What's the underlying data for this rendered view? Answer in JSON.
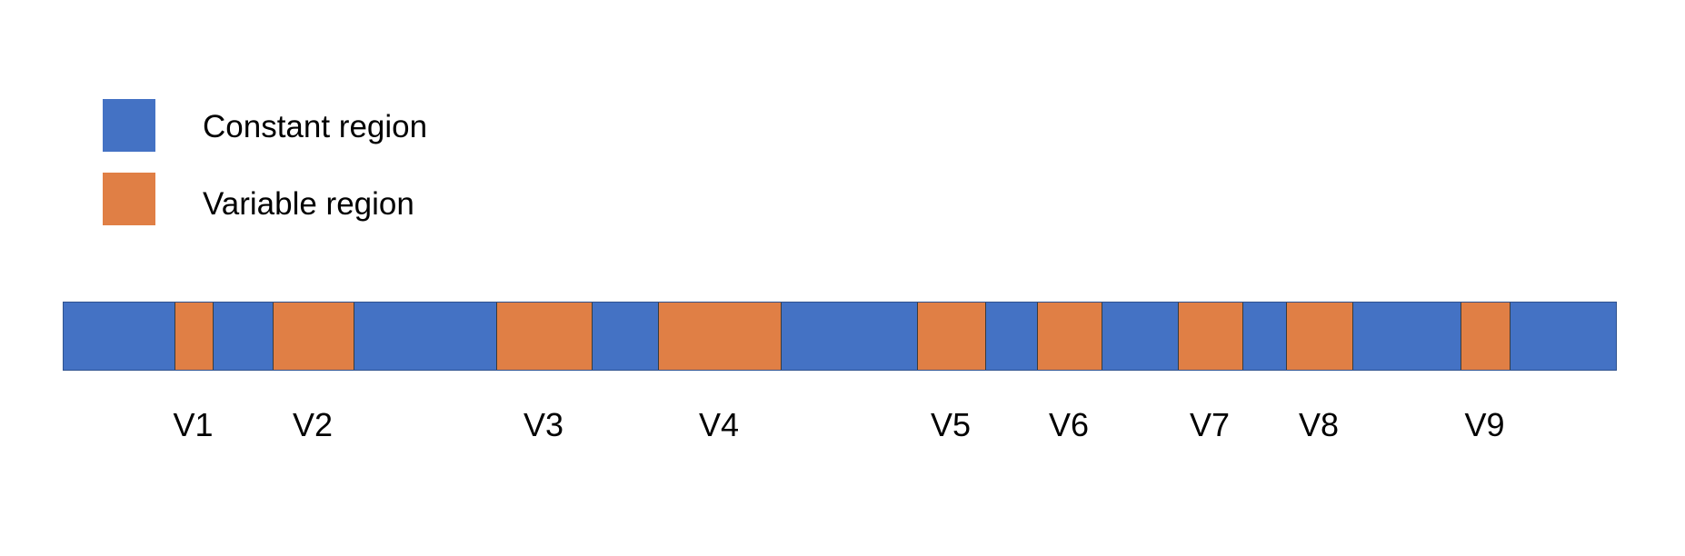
{
  "legend": {
    "constant": {
      "label": "Constant region",
      "color": "#4472C4"
    },
    "variable": {
      "label": "Variable region",
      "color": "#E07F45"
    }
  },
  "gene_strip": {
    "segments": [
      {
        "type": "constant",
        "start": 0,
        "end": 122
      },
      {
        "type": "variable",
        "start": 122,
        "end": 165,
        "label": "V1"
      },
      {
        "type": "constant",
        "start": 165,
        "end": 230
      },
      {
        "type": "variable",
        "start": 230,
        "end": 320,
        "label": "V2"
      },
      {
        "type": "constant",
        "start": 320,
        "end": 476
      },
      {
        "type": "variable",
        "start": 476,
        "end": 582,
        "label": "V3"
      },
      {
        "type": "constant",
        "start": 582,
        "end": 654
      },
      {
        "type": "variable",
        "start": 654,
        "end": 790,
        "label": "V4"
      },
      {
        "type": "constant",
        "start": 790,
        "end": 939
      },
      {
        "type": "variable",
        "start": 939,
        "end": 1015,
        "label": "V5"
      },
      {
        "type": "constant",
        "start": 1015,
        "end": 1071
      },
      {
        "type": "variable",
        "start": 1071,
        "end": 1143,
        "label": "V6"
      },
      {
        "type": "constant",
        "start": 1143,
        "end": 1226
      },
      {
        "type": "variable",
        "start": 1226,
        "end": 1298,
        "label": "V7"
      },
      {
        "type": "constant",
        "start": 1298,
        "end": 1345
      },
      {
        "type": "variable",
        "start": 1345,
        "end": 1419,
        "label": "V8"
      },
      {
        "type": "constant",
        "start": 1419,
        "end": 1537
      },
      {
        "type": "variable",
        "start": 1537,
        "end": 1592,
        "label": "V9"
      },
      {
        "type": "constant",
        "start": 1592,
        "end": 1710
      }
    ]
  }
}
